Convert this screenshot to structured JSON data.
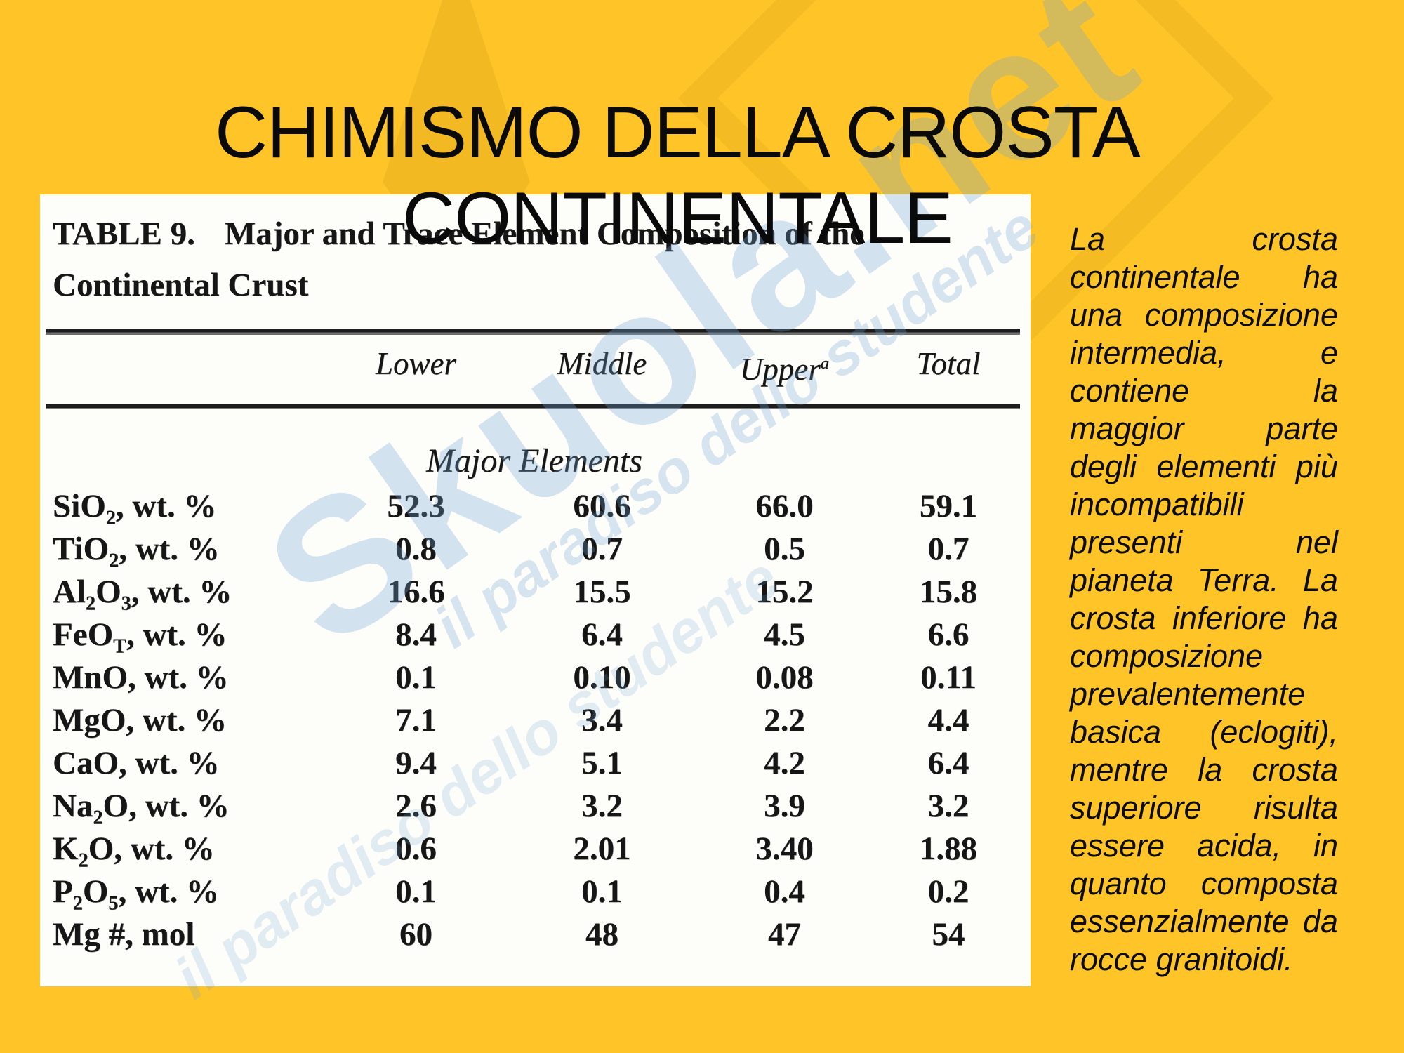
{
  "slide": {
    "title": {
      "line1": "CHIMISMO DELLA CROSTA",
      "line2": "CONTINENTALE"
    },
    "side_paragraph": "La crosta continentale ha una composizione intermedia, e contiene la maggior parte degli elementi più incompatibili presenti nel pianeta Terra. La crosta inferiore ha composizione prevalentemente basica (eclogiti), mentre la crosta superiore risulta essere acida, in quanto composta essenzialmente da rocce granitoidi.",
    "colors": {
      "background": "#FEC428",
      "paper": "#FDFDFA",
      "ink": "#161616",
      "watermark_blue": "#6FA4D4"
    }
  },
  "watermark": {
    "brand": "Skuola.net",
    "tagline": "il paradiso dello studente"
  },
  "chart_data": {
    "type": "table",
    "caption": {
      "label": "TABLE 9.",
      "line1": "Major and Trace Element Composition of the",
      "line2": "Continental Crust"
    },
    "columns": [
      {
        "text": ""
      },
      {
        "text": "Lower"
      },
      {
        "text": "Middle"
      },
      {
        "text": "Upper",
        "sup": "a"
      },
      {
        "text": "Total"
      }
    ],
    "section_header": "Major Elements",
    "rows": [
      {
        "label": [
          [
            "SiO"
          ],
          [
            "2",
            true
          ],
          [
            ", wt. %"
          ]
        ],
        "values": [
          "52.3",
          "60.6",
          "66.0",
          "59.1"
        ]
      },
      {
        "label": [
          [
            "TiO"
          ],
          [
            "2",
            true
          ],
          [
            ", wt. %"
          ]
        ],
        "values": [
          "0.8",
          "0.7",
          "0.5",
          "0.7"
        ]
      },
      {
        "label": [
          [
            "Al"
          ],
          [
            "2",
            true
          ],
          [
            "O"
          ],
          [
            "3",
            true
          ],
          [
            ", wt. %"
          ]
        ],
        "values": [
          "16.6",
          "15.5",
          "15.2",
          "15.8"
        ]
      },
      {
        "label": [
          [
            "FeO"
          ],
          [
            "T",
            true
          ],
          [
            ", wt. %"
          ]
        ],
        "values": [
          "8.4",
          "6.4",
          "4.5",
          "6.6"
        ]
      },
      {
        "label": [
          [
            "MnO, wt. %"
          ]
        ],
        "values": [
          "0.1",
          "0.10",
          "0.08",
          "0.11"
        ]
      },
      {
        "label": [
          [
            "MgO, wt. %"
          ]
        ],
        "values": [
          "7.1",
          "3.4",
          "2.2",
          "4.4"
        ]
      },
      {
        "label": [
          [
            "CaO, wt. %"
          ]
        ],
        "values": [
          "9.4",
          "5.1",
          "4.2",
          "6.4"
        ]
      },
      {
        "label": [
          [
            "Na"
          ],
          [
            "2",
            true
          ],
          [
            "O, wt. %"
          ]
        ],
        "values": [
          "2.6",
          "3.2",
          "3.9",
          "3.2"
        ]
      },
      {
        "label": [
          [
            "K"
          ],
          [
            "2",
            true
          ],
          [
            "O, wt. %"
          ]
        ],
        "values": [
          "0.6",
          "2.01",
          "3.40",
          "1.88"
        ]
      },
      {
        "label": [
          [
            "P"
          ],
          [
            "2",
            true
          ],
          [
            "O"
          ],
          [
            "5",
            true
          ],
          [
            ", wt. %"
          ]
        ],
        "values": [
          "0.1",
          "0.1",
          "0.4",
          "0.2"
        ]
      },
      {
        "label": [
          [
            "Mg #, mol"
          ]
        ],
        "values": [
          "60",
          "48",
          "47",
          "54"
        ]
      }
    ]
  }
}
